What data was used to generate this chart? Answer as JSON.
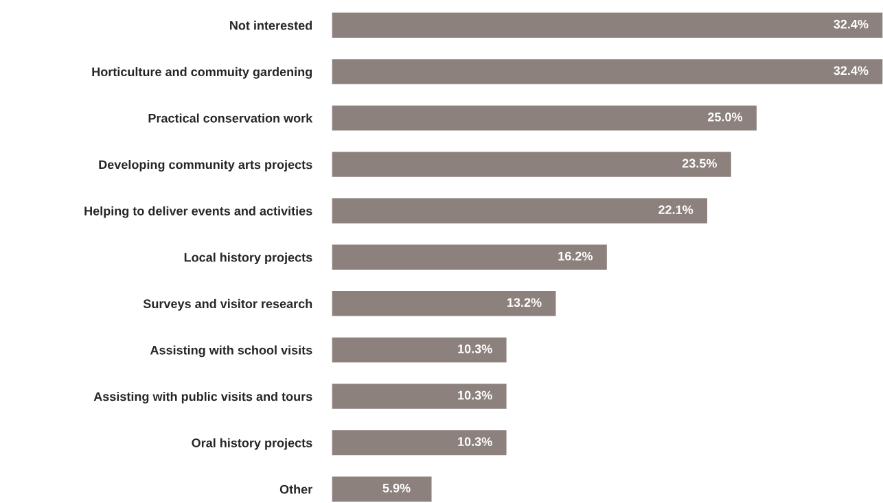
{
  "chart_data": {
    "type": "bar",
    "orientation": "horizontal",
    "categories": [
      "Not interested",
      "Horticulture and commuity gardening",
      "Practical conservation work",
      "Developing community arts projects",
      "Helping to deliver events and activities",
      "Local history projects",
      "Surveys and visitor research",
      "Assisting with school visits",
      "Assisting with public visits and tours",
      "Oral history projects",
      "Other"
    ],
    "values": [
      32.4,
      32.4,
      25.0,
      23.5,
      22.1,
      16.2,
      13.2,
      10.3,
      10.3,
      10.3,
      5.9
    ],
    "value_labels": [
      "32.4%",
      "32.4%",
      "25.0%",
      "23.5%",
      "22.1%",
      "16.2%",
      "13.2%",
      "10.3%",
      "10.3%",
      "10.3%",
      "5.9%"
    ],
    "color": "#8c817c",
    "tick_labels": "y",
    "grid": false,
    "legend": false
  }
}
